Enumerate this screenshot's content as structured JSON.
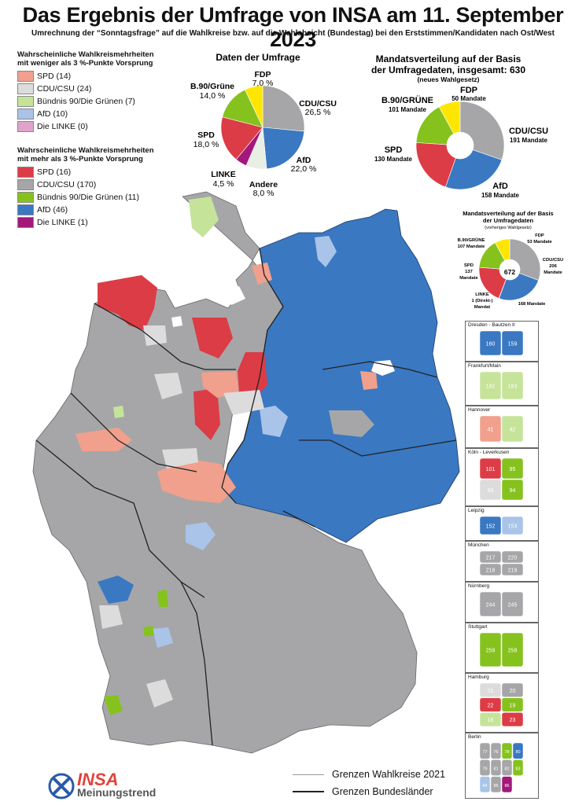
{
  "header": {
    "title": "Das Ergebnis der Umfrage von INSA am 11. September 2023",
    "subtitle": "Umrechnung der “Sonntagsfrage” auf die Wahlkreise bzw. auf die Wahlabsicht (Bundestag) bei den Erststimmen/Kandidaten nach Ost/West"
  },
  "legend_weak": {
    "heading_line1": "Wahrscheinliche Wahlkreismehrheiten",
    "heading_line2": "mit weniger als 3 %-Punkte Vorsprung",
    "items": [
      {
        "label": "SPD (14)",
        "color": "#f0a08c"
      },
      {
        "label": "CDU/CSU (24)",
        "color": "#dcdcdc"
      },
      {
        "label": "Bündnis 90/Die Grünen (7)",
        "color": "#c6e39a"
      },
      {
        "label": "AfD (10)",
        "color": "#a9c4e8"
      },
      {
        "label": "Die LINKE (0)",
        "color": "#e0a4cc"
      }
    ]
  },
  "legend_strong": {
    "heading_line1": "Wahrscheinliche Wahlkreismehrheiten",
    "heading_line2": "mit mehr als 3 %-Punkte Vorsprung",
    "items": [
      {
        "label": "SPD (16)",
        "color": "#dc3c46"
      },
      {
        "label": "CDU/CSU (170)",
        "color": "#a6a6a8"
      },
      {
        "label": "Bündnis 90/Die Grünen (11)",
        "color": "#86c21e"
      },
      {
        "label": "AfD (46)",
        "color": "#3a78c2"
      },
      {
        "label": "Die LINKE (1)",
        "color": "#a3187a"
      }
    ]
  },
  "poll": {
    "title": "Daten der Umfrage",
    "slices": [
      {
        "name": "CDU/CSU",
        "value": 26.5,
        "label_value": "26,5 %",
        "color": "#a6a6a8"
      },
      {
        "name": "AfD",
        "value": 22.0,
        "label_value": "22,0 %",
        "color": "#3a78c2"
      },
      {
        "name": "Andere",
        "value": 8.0,
        "label_value": "8,0 %",
        "color": "#e8efe4"
      },
      {
        "name": "LINKE",
        "value": 4.5,
        "label_value": "4,5 %",
        "color": "#a3187a"
      },
      {
        "name": "SPD",
        "value": 18.0,
        "label_value": "18,0 %",
        "color": "#dc3c46"
      },
      {
        "name": "B.90/Grüne",
        "value": 14.0,
        "label_value": "14,0 %",
        "color": "#86c21e"
      },
      {
        "name": "FDP",
        "value": 7.0,
        "label_value": "7,0 %",
        "color": "#ffe600"
      }
    ]
  },
  "seats_new": {
    "title_line1": "Mandatsverteilung auf der Basis",
    "title_line2": "der Umfragedaten, insgesamt: 630",
    "note": "(neues Wahlgesetz)",
    "slices": [
      {
        "name": "CDU/CSU",
        "value": 191,
        "label_value": "191 Mandate",
        "color": "#a6a6a8"
      },
      {
        "name": "AfD",
        "value": 158,
        "label_value": "158 Mandate",
        "color": "#3a78c2"
      },
      {
        "name": "SPD",
        "value": 130,
        "label_value": "130 Mandate",
        "color": "#dc3c46"
      },
      {
        "name": "B.90/GRÜNE",
        "value": 101,
        "label_value": "101 Mandate",
        "color": "#86c21e"
      },
      {
        "name": "FDP",
        "value": 50,
        "label_value": "50 Mandate",
        "color": "#ffe600"
      }
    ]
  },
  "seats_old": {
    "title_line1": "Mandatsverteilung auf der Basis",
    "title_line2": "der Umfragedaten",
    "note": "(vorheriges Wahlgesetz)",
    "total": "672",
    "linke_line1": "LINKE",
    "linke_line2": "1 (Direkt-)",
    "linke_line3": "Mandat",
    "slices": [
      {
        "name": "CDU/CSU",
        "value": 206,
        "label_value": "206",
        "unit": "Mandate",
        "color": "#a6a6a8"
      },
      {
        "name": "AfD",
        "value": 168,
        "label_value": "168 Mandate",
        "color": "#3a78c2"
      },
      {
        "name": "LINKE",
        "value": 1,
        "label_value": "",
        "color": "#a3187a"
      },
      {
        "name": "SPD",
        "value": 137,
        "label_value": "137",
        "unit": "Mandate",
        "color": "#dc3c46"
      },
      {
        "name": "B.90/GRÜNE",
        "value": 107,
        "label_value": "107 Mandate",
        "color": "#86c21e"
      },
      {
        "name": "FDP",
        "value": 53,
        "label_value": "53 Mandate",
        "color": "#ffe600"
      }
    ]
  },
  "insets": [
    {
      "name": "Dresden - Bautzen II",
      "labels": [
        "160",
        "159"
      ]
    },
    {
      "name": "Frankfurt/Main",
      "labels": [
        "182",
        "183"
      ]
    },
    {
      "name": "Hannover",
      "labels": [
        "41",
        "42"
      ]
    },
    {
      "name": "Köln - Leverkusen",
      "labels": [
        "101",
        "95",
        "93",
        "94"
      ]
    },
    {
      "name": "Leipzig",
      "labels": [
        "152",
        "153"
      ]
    },
    {
      "name": "München",
      "labels": [
        "217",
        "220",
        "218",
        "219"
      ]
    },
    {
      "name": "Nürnberg",
      "labels": [
        "244",
        "245"
      ]
    },
    {
      "name": "Stuttgart",
      "labels": [
        "259",
        "258"
      ]
    },
    {
      "name": "Hamburg",
      "labels": [
        "21",
        "20",
        "22",
        "19",
        "18",
        "23"
      ]
    },
    {
      "name": "Berlin",
      "labels": [
        "77",
        "76",
        "78",
        "80",
        "79",
        "81",
        "82",
        "83",
        "84",
        "85",
        "86"
      ]
    }
  ],
  "map_legend": {
    "wahlkreise": "Grenzen Wahlkreise 2021",
    "bundeslaender": "Grenzen Bundesländer"
  },
  "logo": {
    "brand": "INSA",
    "tagline": "Meinungstrend"
  }
}
